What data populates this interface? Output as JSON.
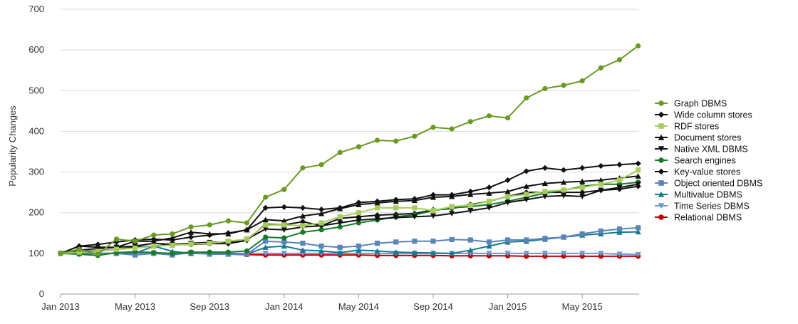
{
  "chart_data": {
    "type": "line",
    "ylabel": "Popularity Changes",
    "ylim": [
      0,
      700
    ],
    "yticks": [
      0,
      100,
      200,
      300,
      400,
      500,
      600,
      700
    ],
    "xlim": [
      0,
      35
    ],
    "xticks": [
      {
        "x": 0,
        "label": "Jan 2013"
      },
      {
        "x": 4,
        "label": "May 2013"
      },
      {
        "x": 8,
        "label": "Sep 2013"
      },
      {
        "x": 12,
        "label": "Jan 2014"
      },
      {
        "x": 16,
        "label": "May 2014"
      },
      {
        "x": 20,
        "label": "Sep 2014"
      },
      {
        "x": 24,
        "label": "Jan 2015"
      },
      {
        "x": 28,
        "label": "May 2015"
      }
    ],
    "grid": "horizontal",
    "legend_position": "right",
    "series": [
      {
        "name": "Graph DBMS",
        "color": "#6a9a22",
        "marker": "circle",
        "values": [
          100,
          110,
          98,
          135,
          130,
          145,
          148,
          165,
          170,
          180,
          175,
          238,
          257,
          310,
          318,
          348,
          362,
          378,
          376,
          388,
          410,
          406,
          424,
          438,
          433,
          482,
          505,
          513,
          524,
          556,
          576,
          610
        ]
      },
      {
        "name": "Wide column stores",
        "color": "#111111",
        "marker": "diamond",
        "values": [
          100,
          118,
          122,
          128,
          133,
          135,
          133,
          140,
          145,
          150,
          158,
          212,
          214,
          212,
          208,
          212,
          225,
          228,
          232,
          234,
          244,
          244,
          252,
          262,
          280,
          302,
          310,
          305,
          310,
          315,
          318,
          321
        ]
      },
      {
        "name": "RDF stores",
        "color": "#a7cc5c",
        "marker": "square",
        "values": [
          100,
          103,
          105,
          110,
          113,
          118,
          120,
          123,
          125,
          130,
          135,
          170,
          170,
          168,
          175,
          190,
          200,
          212,
          212,
          212,
          205,
          215,
          218,
          228,
          240,
          245,
          252,
          256,
          262,
          270,
          280,
          305
        ]
      },
      {
        "name": "Document stores",
        "color": "#111111",
        "marker": "triangle-up",
        "values": [
          100,
          118,
          115,
          115,
          130,
          130,
          138,
          152,
          148,
          148,
          158,
          183,
          180,
          192,
          198,
          210,
          220,
          224,
          228,
          230,
          238,
          240,
          245,
          248,
          252,
          265,
          272,
          275,
          277,
          280,
          285,
          290
        ]
      },
      {
        "name": "Native XML DBMS",
        "color": "#111111",
        "marker": "triangle-down",
        "values": [
          100,
          108,
          112,
          115,
          118,
          125,
          122,
          125,
          127,
          128,
          135,
          160,
          158,
          165,
          168,
          175,
          182,
          185,
          188,
          190,
          192,
          198,
          205,
          212,
          225,
          232,
          240,
          242,
          240,
          255,
          262,
          270
        ]
      },
      {
        "name": "Search engines",
        "color": "#167a2a",
        "marker": "circle",
        "values": [
          100,
          98,
          95,
          102,
          104,
          102,
          100,
          103,
          103,
          103,
          106,
          140,
          138,
          152,
          158,
          165,
          175,
          182,
          190,
          195,
          205,
          212,
          215,
          220,
          228,
          238,
          248,
          255,
          265,
          270,
          270,
          275
        ]
      },
      {
        "name": "Key-value stores",
        "color": "#111111",
        "marker": "diamond",
        "values": [
          100,
          105,
          106,
          110,
          115,
          118,
          122,
          122,
          124,
          124,
          132,
          172,
          170,
          178,
          168,
          186,
          190,
          194,
          196,
          198,
          207,
          210,
          220,
          228,
          240,
          250,
          250,
          250,
          250,
          255,
          258,
          265
        ]
      },
      {
        "name": "Object oriented DBMS",
        "color": "#5b84b8",
        "marker": "square",
        "values": [
          100,
          100,
          100,
          100,
          96,
          100,
          96,
          102,
          98,
          98,
          98,
          130,
          128,
          125,
          118,
          115,
          118,
          125,
          128,
          130,
          130,
          134,
          133,
          128,
          133,
          133,
          137,
          140,
          148,
          155,
          160,
          163
        ]
      },
      {
        "name": "Multivalue DBMS",
        "color": "#177a8c",
        "marker": "triangle-up",
        "values": [
          100,
          100,
          100,
          100,
          100,
          118,
          105,
          100,
          100,
          100,
          98,
          115,
          118,
          108,
          106,
          102,
          108,
          106,
          103,
          102,
          101,
          100,
          108,
          118,
          128,
          130,
          135,
          140,
          145,
          148,
          152,
          153
        ]
      },
      {
        "name": "Time Series DBMS",
        "color": "#6a9ad0",
        "marker": "triangle-down",
        "values": [
          100,
          100,
          100,
          100,
          100,
          100,
          100,
          100,
          100,
          100,
          100,
          100,
          100,
          100,
          100,
          100,
          100,
          100,
          100,
          100,
          100,
          100,
          100,
          100,
          100,
          100,
          100,
          100,
          100,
          100,
          98,
          97
        ]
      },
      {
        "name": "Relational DBMS",
        "color": "#c00000",
        "marker": "circle",
        "values": [
          100,
          100,
          100,
          100,
          100,
          100,
          100,
          100,
          99,
          98,
          97,
          96,
          96,
          96,
          96,
          96,
          96,
          95,
          95,
          95,
          95,
          94,
          94,
          94,
          94,
          93,
          93,
          93,
          93,
          93,
          93,
          93
        ]
      }
    ]
  }
}
